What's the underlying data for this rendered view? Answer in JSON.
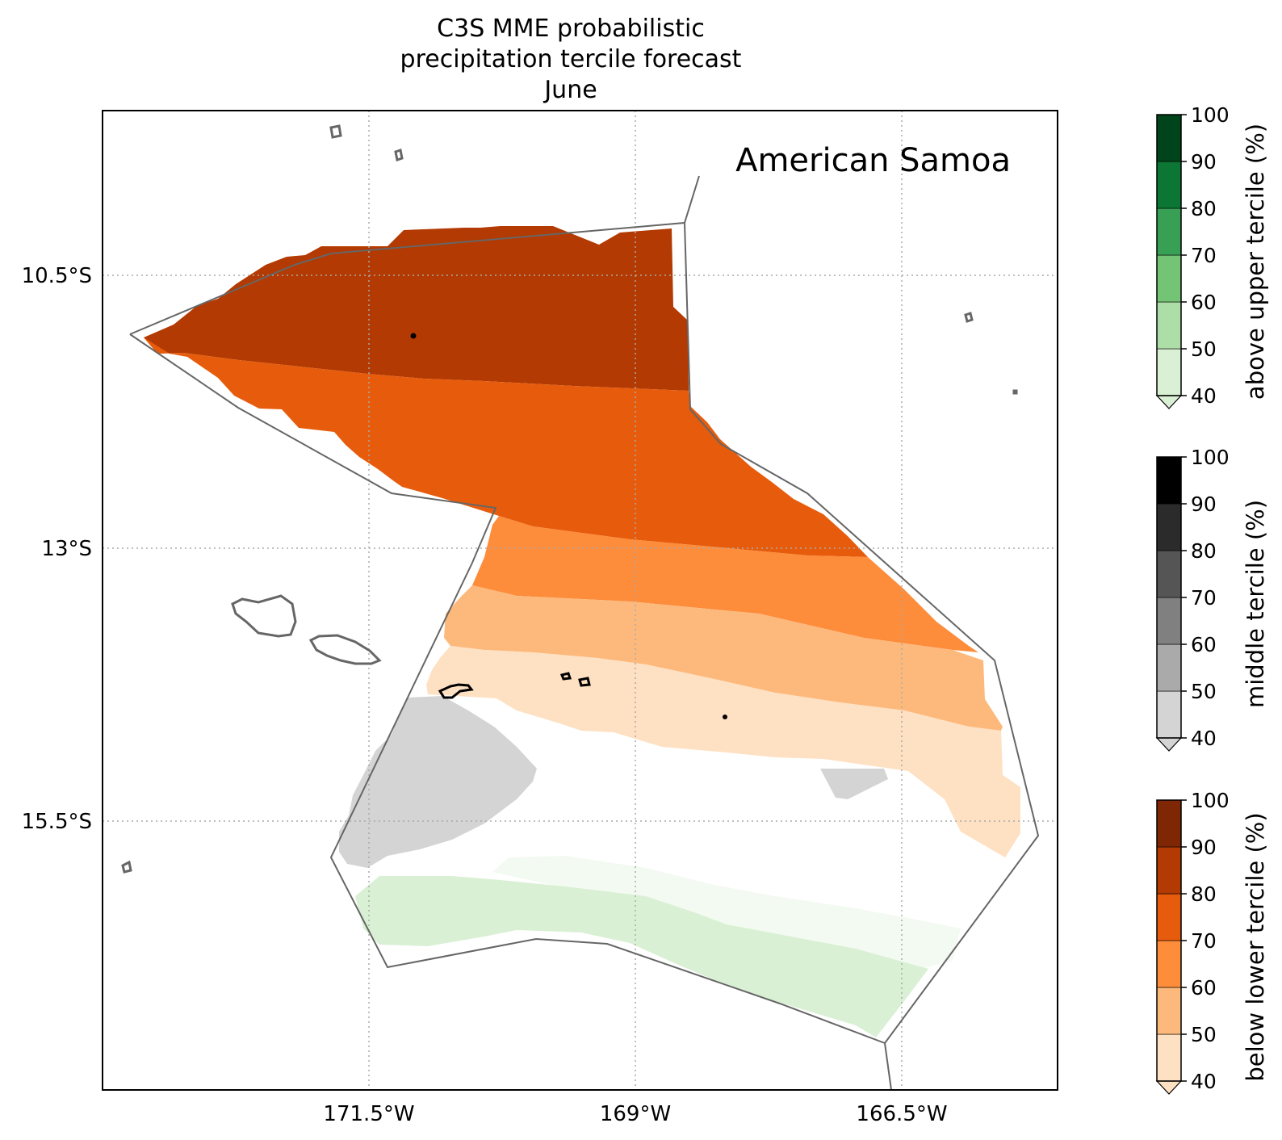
{
  "title": {
    "line1": "C3S MME probabilistic",
    "line2": "precipitation tercile forecast",
    "line3": "June"
  },
  "region_label": "American Samoa",
  "map": {
    "lon_ticks": [
      "171.5°W",
      "169°W",
      "166.5°W"
    ],
    "lat_ticks": [
      "10.5°S",
      "13°S",
      "15.5°S"
    ],
    "gridlines": true,
    "gridline_style": "dotted"
  },
  "colorbars": [
    {
      "label": "above upper tercile (%)",
      "ticks": [
        "40",
        "50",
        "60",
        "70",
        "80",
        "90",
        "100"
      ],
      "colors": [
        "#daf0d5",
        "#addea7",
        "#74c476",
        "#37a055",
        "#0c7734",
        "#00441b"
      ]
    },
    {
      "label": "middle tercile (%)",
      "ticks": [
        "40",
        "50",
        "60",
        "70",
        "80",
        "90",
        "100"
      ],
      "colors": [
        "#d4d4d4",
        "#aaaaaa",
        "#808080",
        "#555555",
        "#2b2b2b",
        "#000000"
      ]
    },
    {
      "label": "below lower tercile (%)",
      "ticks": [
        "40",
        "50",
        "60",
        "70",
        "80",
        "90",
        "100"
      ],
      "colors": [
        "#fee0c2",
        "#fdb97c",
        "#fd8c3b",
        "#e75c0c",
        "#b33a02",
        "#7f2704"
      ]
    }
  ],
  "colors": {
    "eez_outline": "#666666",
    "coastline_highlight": "#000000",
    "coastline_other": "#666666",
    "gridline": "#aaaaaa"
  }
}
